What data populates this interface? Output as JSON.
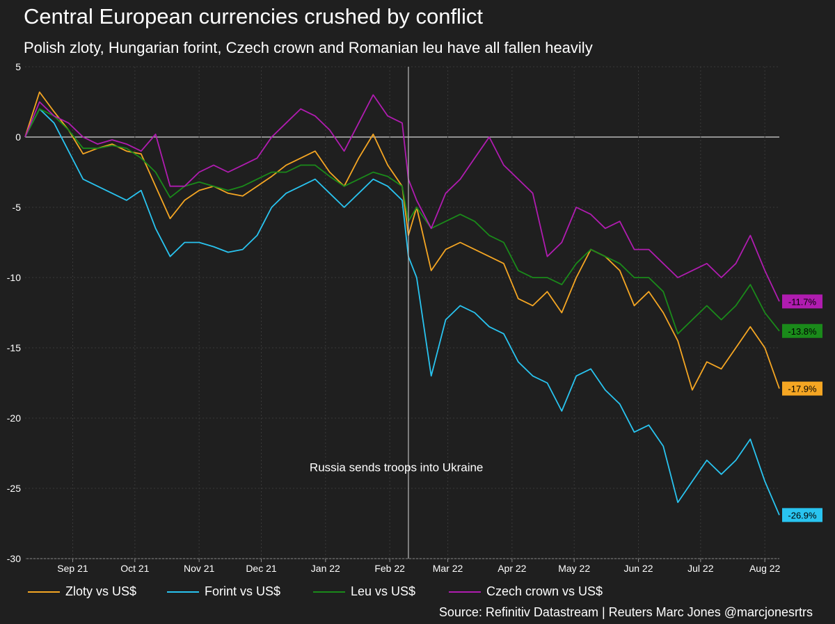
{
  "header": {
    "title": "Central European currencies crushed by conflict",
    "subtitle": "Polish zloty, Hungarian forint, Czech crown and Romanian leu have all fallen heavily"
  },
  "source": "Source: Refinitiv Datastream | Reuters Marc Jones @marcjonesrtrs",
  "chart_data": {
    "type": "line",
    "title": "Central European currencies crushed by conflict",
    "subtitle": "Polish zloty, Hungarian forint, Czech crown and Romanian leu have all fallen heavily",
    "xlabel": "",
    "ylabel": "",
    "ylim": [
      -30,
      5
    ],
    "yticks": [
      5,
      0,
      -5,
      -10,
      -15,
      -20,
      -25,
      -30
    ],
    "x_dates": [
      "2021-08-23",
      "2021-08-30",
      "2021-09-06",
      "2021-09-13",
      "2021-09-20",
      "2021-09-27",
      "2021-10-04",
      "2021-10-11",
      "2021-10-18",
      "2021-10-25",
      "2021-11-01",
      "2021-11-08",
      "2021-11-15",
      "2021-11-22",
      "2021-11-29",
      "2021-12-06",
      "2021-12-13",
      "2021-12-20",
      "2021-12-27",
      "2022-01-03",
      "2022-01-10",
      "2022-01-17",
      "2022-01-24",
      "2022-01-31",
      "2022-02-07",
      "2022-02-14",
      "2022-02-21",
      "2022-02-24",
      "2022-02-28",
      "2022-03-07",
      "2022-03-14",
      "2022-03-21",
      "2022-03-28",
      "2022-04-04",
      "2022-04-11",
      "2022-04-18",
      "2022-04-25",
      "2022-05-02",
      "2022-05-09",
      "2022-05-16",
      "2022-05-23",
      "2022-05-30",
      "2022-06-06",
      "2022-06-13",
      "2022-06-20",
      "2022-06-27",
      "2022-07-04",
      "2022-07-11",
      "2022-07-18",
      "2022-07-25",
      "2022-08-01",
      "2022-08-08",
      "2022-08-15",
      "2022-08-22"
    ],
    "x_tick_labels": [
      "Sep 21",
      "Oct 21",
      "Nov 21",
      "Dec 21",
      "Jan 22",
      "Feb 22",
      "Mar 22",
      "Apr 22",
      "May 22",
      "Jun 22",
      "Jul 22",
      "Aug 22"
    ],
    "x_tick_dates": [
      "2021-09-15",
      "2021-10-15",
      "2021-11-15",
      "2021-12-15",
      "2022-01-15",
      "2022-02-15",
      "2022-03-15",
      "2022-04-15",
      "2022-05-15",
      "2022-06-15",
      "2022-07-15",
      "2022-08-15"
    ],
    "grid": true,
    "zero_line": true,
    "legend_position": "bottom",
    "series": [
      {
        "name": "Zloty vs US$",
        "color": "#f5a623",
        "end_label": "-17.9%",
        "values": [
          0,
          3.2,
          1.8,
          0.5,
          -1.2,
          -0.8,
          -0.5,
          -1.0,
          -1.2,
          -3.5,
          -5.8,
          -4.5,
          -3.8,
          -3.5,
          -4.0,
          -4.2,
          -3.5,
          -2.8,
          -2.0,
          -1.5,
          -1.0,
          -2.5,
          -3.5,
          -1.5,
          0.2,
          -2.0,
          -3.5,
          -7.0,
          -5.0,
          -9.5,
          -8.0,
          -7.5,
          -8.0,
          -8.5,
          -9.0,
          -11.5,
          -12.0,
          -11.0,
          -12.5,
          -10.0,
          -8.0,
          -8.5,
          -9.5,
          -12.0,
          -11.0,
          -12.5,
          -14.5,
          -18.0,
          -16.0,
          -16.5,
          -15.0,
          -13.5,
          -15.0,
          -17.9
        ]
      },
      {
        "name": "Forint vs US$",
        "color": "#29c4f0",
        "end_label": "-26.9%",
        "values": [
          0,
          2.0,
          1.0,
          -1.0,
          -3.0,
          -3.5,
          -4.0,
          -4.5,
          -3.8,
          -6.5,
          -8.5,
          -7.5,
          -7.5,
          -7.8,
          -8.2,
          -8.0,
          -7.0,
          -5.0,
          -4.0,
          -3.5,
          -3.0,
          -4.0,
          -5.0,
          -4.0,
          -3.0,
          -3.5,
          -4.5,
          -8.5,
          -10.0,
          -17.0,
          -13.0,
          -12.0,
          -12.5,
          -13.5,
          -14.0,
          -16.0,
          -17.0,
          -17.5,
          -19.5,
          -17.0,
          -16.5,
          -18.0,
          -19.0,
          -21.0,
          -20.5,
          -22.0,
          -26.0,
          -24.5,
          -23.0,
          -24.0,
          -23.0,
          -21.5,
          -24.5,
          -26.9
        ]
      },
      {
        "name": "Leu vs US$",
        "color": "#1a8a1a",
        "end_label": "-13.8%",
        "values": [
          0,
          2.0,
          1.5,
          0.5,
          -0.8,
          -0.8,
          -0.6,
          -0.8,
          -1.5,
          -2.5,
          -4.3,
          -3.5,
          -3.2,
          -3.5,
          -3.8,
          -3.5,
          -3.0,
          -2.5,
          -2.5,
          -2.0,
          -2.0,
          -2.8,
          -3.5,
          -3.0,
          -2.5,
          -2.8,
          -3.5,
          -6.0,
          -5.0,
          -6.5,
          -6.0,
          -5.5,
          -6.0,
          -7.0,
          -7.5,
          -9.5,
          -10.0,
          -10.0,
          -10.5,
          -9.0,
          -8.0,
          -8.5,
          -9.0,
          -10.0,
          -10.0,
          -11.0,
          -14.0,
          -13.0,
          -12.0,
          -13.0,
          -12.0,
          -10.5,
          -12.5,
          -13.8
        ]
      },
      {
        "name": "Czech crown vs US$",
        "color": "#b01cb0",
        "end_label": "-11.7%",
        "values": [
          0,
          2.5,
          1.5,
          1.0,
          0,
          -0.5,
          -0.2,
          -0.5,
          -1.0,
          0.2,
          -3.5,
          -3.5,
          -2.5,
          -2.0,
          -2.5,
          -2.0,
          -1.5,
          0,
          1.0,
          2.0,
          1.5,
          0.5,
          -1.0,
          1.0,
          3.0,
          1.5,
          1.0,
          -3.0,
          -4.5,
          -6.5,
          -4.0,
          -3.0,
          -1.5,
          0,
          -2.0,
          -3.0,
          -4.0,
          -8.5,
          -7.5,
          -5.0,
          -5.5,
          -6.5,
          -6.0,
          -8.0,
          -8.0,
          -9.0,
          -10.0,
          -9.5,
          -9.0,
          -10.0,
          -9.0,
          -7.0,
          -9.5,
          -11.7
        ]
      }
    ],
    "annotations": [
      {
        "date": "2022-02-24",
        "text": "Russia sends troops into Ukraine",
        "y": -23.5
      }
    ]
  }
}
